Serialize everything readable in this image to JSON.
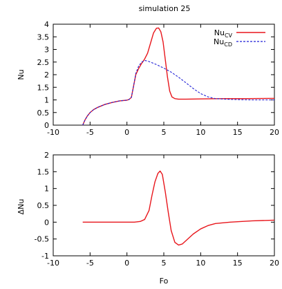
{
  "chart_data": [
    {
      "type": "line",
      "title": "simulation 25",
      "xlabel": "",
      "ylabel": "Nu",
      "xlim": [
        -10,
        20
      ],
      "ylim": [
        0,
        4
      ],
      "xticks": [
        "-10",
        "-5",
        "0",
        "5",
        "10",
        "15",
        "20"
      ],
      "yticks": [
        "0",
        "0.5",
        "1",
        "1.5",
        "2",
        "2.5",
        "3",
        "3.5",
        "4"
      ],
      "legend_position": "top-right",
      "series": [
        {
          "name": "CV",
          "color": "#e8151b",
          "dash": "solid",
          "x": [
            -6,
            -5.7,
            -5.4,
            -5,
            -4.5,
            -4,
            -3,
            -2,
            -1,
            0,
            0.3,
            0.6,
            0.9,
            1.2,
            1.6,
            2.0,
            2.4,
            2.8,
            3.2,
            3.6,
            4.0,
            4.3,
            4.6,
            4.9,
            5.2,
            5.5,
            5.8,
            6.1,
            6.5,
            7,
            8,
            10,
            13,
            16,
            20
          ],
          "y": [
            0,
            0.2,
            0.35,
            0.5,
            0.62,
            0.7,
            0.82,
            0.9,
            0.96,
            0.99,
            1.02,
            1.1,
            1.55,
            2.0,
            2.25,
            2.45,
            2.62,
            2.85,
            3.25,
            3.65,
            3.84,
            3.85,
            3.7,
            3.3,
            2.6,
            1.9,
            1.35,
            1.12,
            1.05,
            1.03,
            1.03,
            1.04,
            1.05,
            1.05,
            1.06
          ]
        },
        {
          "name": "CD",
          "color": "#1f1fd6",
          "dash": "dashed",
          "x": [
            -6,
            -5.7,
            -5.4,
            -5,
            -4.5,
            -4,
            -3,
            -2,
            -1,
            0,
            0.3,
            0.6,
            0.9,
            1.2,
            1.6,
            2.0,
            2.5,
            3.0,
            4,
            5,
            6,
            7,
            8,
            9,
            10,
            11,
            12,
            14,
            17,
            20
          ],
          "y": [
            0,
            0.2,
            0.35,
            0.5,
            0.62,
            0.7,
            0.82,
            0.9,
            0.96,
            0.99,
            1.02,
            1.1,
            1.55,
            2.05,
            2.35,
            2.5,
            2.56,
            2.52,
            2.4,
            2.26,
            2.1,
            1.9,
            1.68,
            1.45,
            1.25,
            1.12,
            1.05,
            1.02,
            1.0,
            1.0
          ]
        }
      ]
    },
    {
      "type": "line",
      "title": "",
      "xlabel": "Fo",
      "ylabel": "ΔNu",
      "xlim": [
        -10,
        20
      ],
      "ylim": [
        -1,
        2
      ],
      "xticks": [
        "-10",
        "-5",
        "0",
        "5",
        "10",
        "15",
        "20"
      ],
      "yticks": [
        "-1",
        "-0.5",
        "0",
        "0.5",
        "1",
        "1.5",
        "2"
      ],
      "series": [
        {
          "color": "#e8151b",
          "dash": "solid",
          "x": [
            -6,
            -4,
            -2,
            0,
            1.0,
            1.8,
            2.4,
            3.0,
            3.4,
            3.8,
            4.2,
            4.5,
            4.8,
            5.2,
            5.6,
            6.0,
            6.5,
            7.0,
            7.5,
            8.0,
            9,
            10,
            11,
            12,
            14,
            17,
            20
          ],
          "y": [
            0,
            0,
            0,
            0,
            0,
            0.02,
            0.08,
            0.35,
            0.8,
            1.2,
            1.45,
            1.52,
            1.42,
            0.9,
            0.3,
            -0.25,
            -0.6,
            -0.68,
            -0.65,
            -0.55,
            -0.35,
            -0.2,
            -0.1,
            -0.04,
            0.0,
            0.04,
            0.06
          ]
        }
      ]
    }
  ]
}
